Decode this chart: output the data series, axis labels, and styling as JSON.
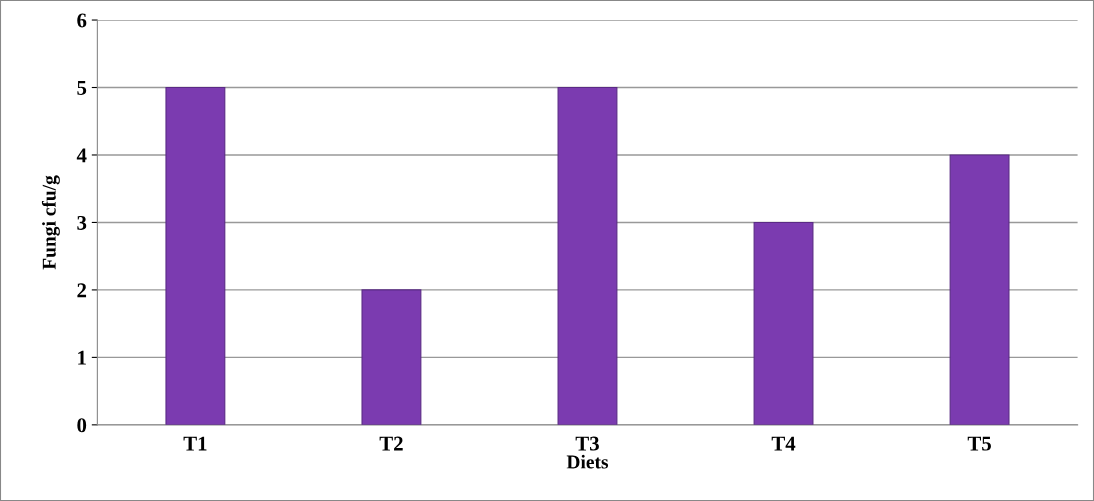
{
  "chart_data": {
    "type": "bar",
    "xlabel": "Diets",
    "ylabel": "Fungi cfu/g",
    "categories": [
      "T1",
      "T2",
      "T3",
      "T4",
      "T5"
    ],
    "values": [
      5,
      2,
      5,
      3,
      4
    ],
    "color": "#7b3bb0",
    "ylim": [
      0,
      6
    ],
    "yticks": [
      0,
      1,
      2,
      3,
      4,
      5,
      6
    ],
    "grid": "y"
  }
}
